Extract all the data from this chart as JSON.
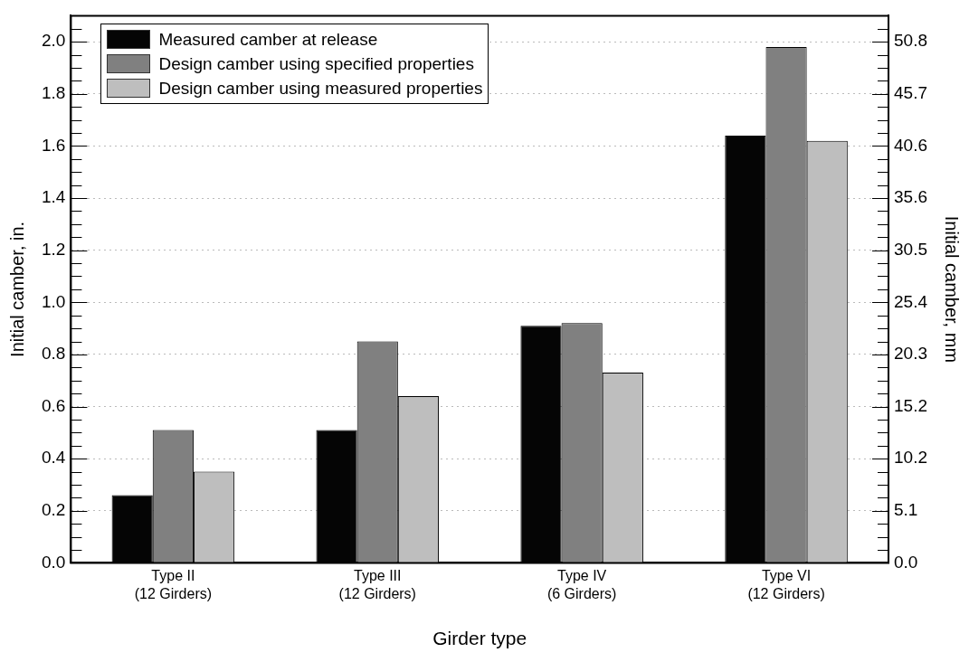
{
  "chart_data": {
    "type": "bar",
    "categories": [
      "Type II\n(12 Girders)",
      "Type III\n(12 Girders)",
      "Type IV\n(6 Girders)",
      "Type VI\n(12 Girders)"
    ],
    "series": [
      {
        "name": "Measured camber at release",
        "color": "#050505",
        "values": [
          0.26,
          0.51,
          0.91,
          1.64
        ]
      },
      {
        "name": "Design camber using specified properties",
        "color": "#808080",
        "values": [
          0.51,
          0.85,
          0.92,
          1.98
        ]
      },
      {
        "name": "Design camber using measured properties",
        "color": "#bebebe",
        "values": [
          0.35,
          0.64,
          0.73,
          1.62
        ]
      }
    ],
    "xlabel": "Girder type",
    "ylabel": "Initial camber, in.",
    "y2label": "Initial camber, mm",
    "ylim": [
      0,
      2.1
    ],
    "yticks": [
      {
        "value": 0,
        "label": "0.0"
      },
      {
        "value": 0.05,
        "label": null
      },
      {
        "value": 0.1,
        "label": null
      },
      {
        "value": 0.15,
        "label": null
      },
      {
        "value": 0.2,
        "label": "0.2"
      },
      {
        "value": 0.25,
        "label": null
      },
      {
        "value": 0.3,
        "label": null
      },
      {
        "value": 0.35,
        "label": null
      },
      {
        "value": 0.4,
        "label": "0.4"
      },
      {
        "value": 0.45,
        "label": null
      },
      {
        "value": 0.5,
        "label": null
      },
      {
        "value": 0.55,
        "label": null
      },
      {
        "value": 0.6,
        "label": "0.6"
      },
      {
        "value": 0.65,
        "label": null
      },
      {
        "value": 0.7,
        "label": null
      },
      {
        "value": 0.75,
        "label": null
      },
      {
        "value": 0.8,
        "label": "0.8"
      },
      {
        "value": 0.85,
        "label": null
      },
      {
        "value": 0.9,
        "label": null
      },
      {
        "value": 0.95,
        "label": null
      },
      {
        "value": 1.0,
        "label": "1.0"
      },
      {
        "value": 1.05,
        "label": null
      },
      {
        "value": 1.1,
        "label": null
      },
      {
        "value": 1.15,
        "label": null
      },
      {
        "value": 1.2,
        "label": "1.2"
      },
      {
        "value": 1.25,
        "label": null
      },
      {
        "value": 1.3,
        "label": null
      },
      {
        "value": 1.35,
        "label": null
      },
      {
        "value": 1.4,
        "label": "1.4"
      },
      {
        "value": 1.45,
        "label": null
      },
      {
        "value": 1.5,
        "label": null
      },
      {
        "value": 1.55,
        "label": null
      },
      {
        "value": 1.6,
        "label": "1.6"
      },
      {
        "value": 1.65,
        "label": null
      },
      {
        "value": 1.7,
        "label": null
      },
      {
        "value": 1.75,
        "label": null
      },
      {
        "value": 1.8,
        "label": "1.8"
      },
      {
        "value": 1.85,
        "label": null
      },
      {
        "value": 1.9,
        "label": null
      },
      {
        "value": 1.95,
        "label": null
      },
      {
        "value": 2.0,
        "label": "2.0"
      },
      {
        "value": 2.05,
        "label": null
      }
    ],
    "y2lim": [
      0,
      53.34
    ],
    "y2ticks": [
      {
        "value": 0,
        "label": "0.0"
      },
      {
        "value": 1.27,
        "label": null
      },
      {
        "value": 2.54,
        "label": null
      },
      {
        "value": 3.81,
        "label": null
      },
      {
        "value": 5.08,
        "label": "5.1"
      },
      {
        "value": 6.35,
        "label": null
      },
      {
        "value": 7.62,
        "label": null
      },
      {
        "value": 8.89,
        "label": null
      },
      {
        "value": 10.16,
        "label": "10.2"
      },
      {
        "value": 11.43,
        "label": null
      },
      {
        "value": 12.7,
        "label": null
      },
      {
        "value": 13.97,
        "label": null
      },
      {
        "value": 15.24,
        "label": "15.2"
      },
      {
        "value": 16.51,
        "label": null
      },
      {
        "value": 17.78,
        "label": null
      },
      {
        "value": 19.05,
        "label": null
      },
      {
        "value": 20.32,
        "label": "20.3"
      },
      {
        "value": 21.59,
        "label": null
      },
      {
        "value": 22.86,
        "label": null
      },
      {
        "value": 24.13,
        "label": null
      },
      {
        "value": 25.4,
        "label": "25.4"
      },
      {
        "value": 26.67,
        "label": null
      },
      {
        "value": 27.94,
        "label": null
      },
      {
        "value": 29.21,
        "label": null
      },
      {
        "value": 30.48,
        "label": "30.5"
      },
      {
        "value": 31.75,
        "label": null
      },
      {
        "value": 33.02,
        "label": null
      },
      {
        "value": 34.29,
        "label": null
      },
      {
        "value": 35.56,
        "label": "35.6"
      },
      {
        "value": 36.83,
        "label": null
      },
      {
        "value": 38.1,
        "label": null
      },
      {
        "value": 39.37,
        "label": null
      },
      {
        "value": 40.64,
        "label": "40.6"
      },
      {
        "value": 41.91,
        "label": null
      },
      {
        "value": 43.18,
        "label": null
      },
      {
        "value": 44.45,
        "label": null
      },
      {
        "value": 45.72,
        "label": "45.7"
      },
      {
        "value": 46.99,
        "label": null
      },
      {
        "value": 48.26,
        "label": null
      },
      {
        "value": 49.53,
        "label": null
      },
      {
        "value": 50.8,
        "label": "50.8"
      },
      {
        "value": 52.07,
        "label": null
      }
    ],
    "grid": "y",
    "legend": "top left"
  }
}
